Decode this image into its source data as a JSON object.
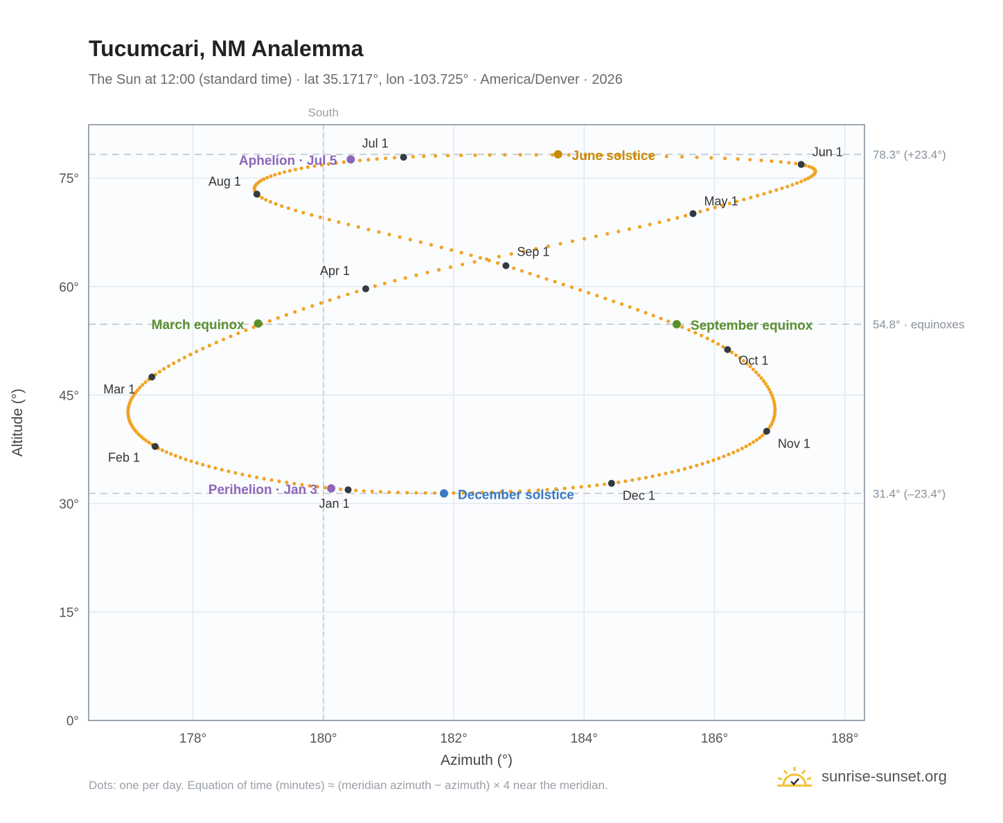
{
  "title": "Tucumcari, NM Analemma",
  "subtitle": "The Sun at 12:00 (standard time) · lat 35.1717°, lon -103.725° · America/Denver · 2026",
  "footnote": "Dots: one per day. Equation of time (minutes) ≈ (meridian azimuth − azimuth) × 4 near the meridian.",
  "brand": "sunrise-sunset.org",
  "colors": {
    "curve": "#f2a323",
    "month": "#333a40",
    "june": "#c98a07",
    "december": "#3a78c2",
    "equinox": "#5a8f2e",
    "apsis": "#8e66b8",
    "grid": "#e4e8ed",
    "plot_bg": "#fafcfe",
    "frame": "#9aa6b2",
    "ref": "#c5cbd3"
  },
  "chart_data": {
    "type": "scatter",
    "xlabel": "Azimuth (°)",
    "ylabel": "Altitude (°)",
    "xlim": [
      176.4,
      188.3
    ],
    "ylim": [
      0,
      82.4
    ],
    "x_ticks": [
      178,
      180,
      182,
      184,
      186,
      188
    ],
    "x_tick_labels": [
      "178°",
      "180°",
      "182°",
      "184°",
      "186°",
      "188°"
    ],
    "y_ticks": [
      0,
      15,
      30,
      45,
      60,
      75
    ],
    "y_tick_labels": [
      "0°",
      "15°",
      "30°",
      "45°",
      "60°",
      "75°"
    ],
    "grid": true,
    "meridian": {
      "x": 180,
      "label": "South"
    },
    "reference_lines": [
      {
        "y": 78.3,
        "label": "78.3° (+23.4°)"
      },
      {
        "y": 54.8,
        "label": "54.8° · equinoxes"
      },
      {
        "y": 31.4,
        "label": "31.4° (–23.4°)"
      }
    ],
    "month_markers": [
      {
        "label": "Jan 1",
        "x": 180.38,
        "y": 31.9
      },
      {
        "label": "Feb 1",
        "x": 177.42,
        "y": 37.9
      },
      {
        "label": "Mar 1",
        "x": 177.37,
        "y": 47.5
      },
      {
        "label": "Apr 1",
        "x": 180.65,
        "y": 59.7
      },
      {
        "label": "May 1",
        "x": 185.67,
        "y": 70.1
      },
      {
        "label": "Jun 1",
        "x": 187.33,
        "y": 76.9
      },
      {
        "label": "Jul 1",
        "x": 181.23,
        "y": 77.9
      },
      {
        "label": "Aug 1",
        "x": 178.98,
        "y": 72.8
      },
      {
        "label": "Sep 1",
        "x": 182.8,
        "y": 62.9
      },
      {
        "label": "Oct 1",
        "x": 186.2,
        "y": 51.3
      },
      {
        "label": "Nov 1",
        "x": 186.8,
        "y": 40.0
      },
      {
        "label": "Dec 1",
        "x": 184.42,
        "y": 32.8
      }
    ],
    "events": [
      {
        "label": "June solstice",
        "x": 183.6,
        "y": 78.3,
        "kind": "june"
      },
      {
        "label": "December solstice",
        "x": 181.85,
        "y": 31.4,
        "kind": "december"
      },
      {
        "label": "March equinox",
        "x": 179.0,
        "y": 54.9,
        "kind": "equinox"
      },
      {
        "label": "September equinox",
        "x": 185.42,
        "y": 54.8,
        "kind": "equinox"
      },
      {
        "label": "Aphelion · Jul 5",
        "x": 180.42,
        "y": 77.6,
        "kind": "apsis"
      },
      {
        "label": "Perihelion · Jan 3",
        "x": 180.12,
        "y": 32.1,
        "kind": "apsis"
      }
    ]
  }
}
